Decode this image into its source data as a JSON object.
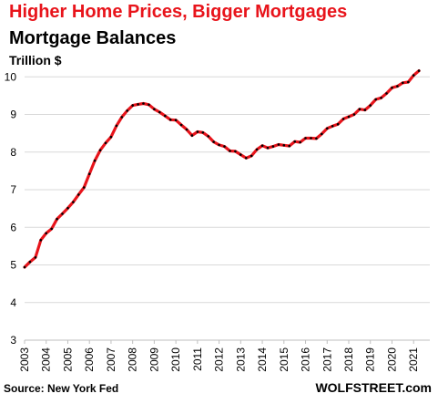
{
  "chart_data": {
    "type": "line",
    "title": "Higher Home Prices, Bigger Mortgages",
    "subtitle": "Mortgage Balances",
    "ylabel": "Trillion $",
    "xlabel": "",
    "source": "Source: New York Fed",
    "brand": "WOLFSTREET.com",
    "ylim": [
      3,
      10.2
    ],
    "xlim": [
      2003,
      2021.75
    ],
    "yticks": [
      "3",
      "4",
      "5",
      "6",
      "7",
      "8",
      "9",
      "10"
    ],
    "xticks": [
      "2003",
      "2004",
      "2005",
      "2006",
      "2007",
      "2008",
      "2009",
      "2010",
      "2011",
      "2012",
      "2013",
      "2014",
      "2015",
      "2016",
      "2017",
      "2018",
      "2019",
      "2020",
      "2021"
    ],
    "grid": true,
    "line_color": "#e8141b",
    "marker_color": "#000000",
    "series": [
      {
        "x": [
          2003,
          2003.25,
          2003.5,
          2003.75,
          2004,
          2004.25,
          2004.5,
          2004.75,
          2005,
          2005.25,
          2005.5,
          2005.75,
          2006,
          2006.25,
          2006.5,
          2006.75,
          2007,
          2007.25,
          2007.5,
          2007.75,
          2008,
          2008.25,
          2008.5,
          2008.75,
          2009,
          2009.25,
          2009.5,
          2009.75,
          2010,
          2010.25,
          2010.5,
          2010.75,
          2011,
          2011.25,
          2011.5,
          2011.75,
          2012,
          2012.25,
          2012.5,
          2012.75,
          2013,
          2013.25,
          2013.5,
          2013.75,
          2014,
          2014.25,
          2014.5,
          2014.75,
          2015,
          2015.25,
          2015.5,
          2015.75,
          2016,
          2016.25,
          2016.5,
          2016.75,
          2017,
          2017.25,
          2017.5,
          2017.75,
          2018,
          2018.25,
          2018.5,
          2018.75,
          2019,
          2019.25,
          2019.5,
          2019.75,
          2020,
          2020.25,
          2020.5,
          2020.75,
          2021,
          2021.25
        ],
        "values": [
          4.94,
          5.08,
          5.2,
          5.66,
          5.84,
          5.96,
          6.22,
          6.36,
          6.51,
          6.67,
          6.87,
          7.06,
          7.42,
          7.77,
          8.05,
          8.24,
          8.4,
          8.7,
          8.93,
          9.1,
          9.24,
          9.27,
          9.29,
          9.26,
          9.14,
          9.06,
          8.96,
          8.86,
          8.85,
          8.72,
          8.6,
          8.44,
          8.54,
          8.52,
          8.42,
          8.27,
          8.19,
          8.15,
          8.03,
          8.02,
          7.93,
          7.84,
          7.9,
          8.07,
          8.17,
          8.11,
          8.15,
          8.2,
          8.18,
          8.16,
          8.28,
          8.26,
          8.37,
          8.37,
          8.36,
          8.48,
          8.63,
          8.69,
          8.74,
          8.88,
          8.94,
          9.0,
          9.14,
          9.12,
          9.24,
          9.4,
          9.44,
          9.56,
          9.71,
          9.75,
          9.84,
          9.86,
          10.04,
          10.16
        ]
      }
    ]
  }
}
